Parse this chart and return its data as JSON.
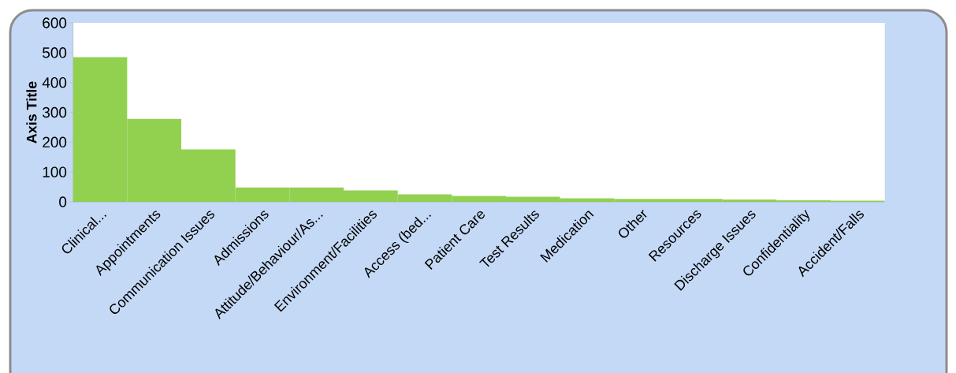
{
  "chart_data": {
    "type": "bar",
    "ylabel": "Axis Title",
    "categories": [
      "Clinical...",
      "Appointments",
      "Communication Issues",
      "Admissions",
      "Attitude/Behaviour/As...",
      "Environment/Facilities",
      "Access (bed...",
      "Patient Care",
      "Test Results",
      "Medication",
      "Other",
      "Resources",
      "Discharge Issues",
      "Confidentiality",
      "Accident/Falls"
    ],
    "values": [
      485,
      278,
      176,
      48,
      48,
      38,
      25,
      20,
      17,
      12,
      10,
      10,
      8,
      5,
      4
    ],
    "color": "#92d050",
    "ylim": [
      0,
      600
    ],
    "yticks": [
      0,
      100,
      200,
      300,
      400,
      500,
      600
    ],
    "grid": false
  }
}
